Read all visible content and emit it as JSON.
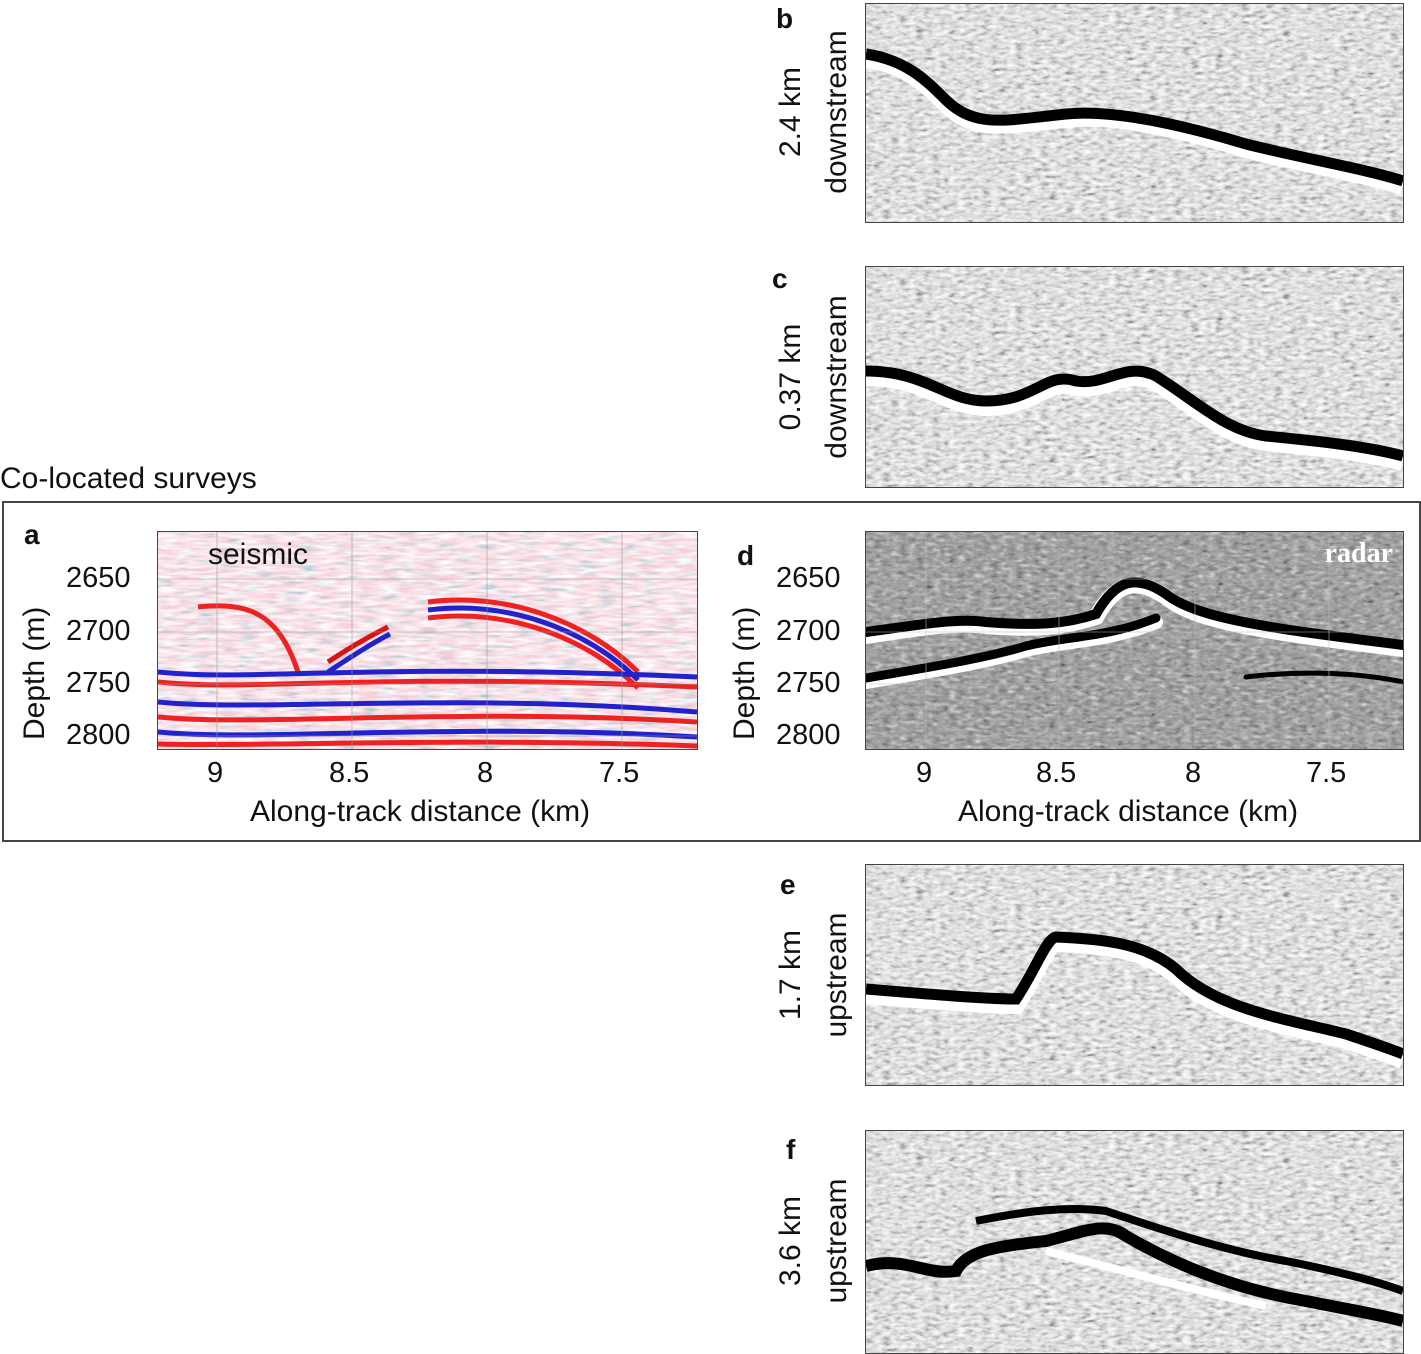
{
  "group_title": "Co-located surveys",
  "chart_data": [
    {
      "panel": "a",
      "type": "heatmap",
      "annotation": "seismic",
      "xlabel": "Along-track distance (km)",
      "ylabel": "Depth (m)",
      "xticks": [
        "9",
        "8.5",
        "8",
        "7.5"
      ],
      "yticks": [
        "2650",
        "2700",
        "2750",
        "2800"
      ],
      "xlim": [
        9.22,
        7.2
      ],
      "ylim": [
        2610,
        2815
      ],
      "colormap": "red-white-blue",
      "grid": true
    },
    {
      "panel": "b",
      "type": "heatmap",
      "label_line1": "2.4 km",
      "label_line2": "downstream",
      "colormap": "gray",
      "grid": true
    },
    {
      "panel": "c",
      "type": "heatmap",
      "label_line1": "0.37 km",
      "label_line2": "downstream",
      "colormap": "gray",
      "grid": true
    },
    {
      "panel": "d",
      "type": "heatmap",
      "annotation": "radar",
      "xlabel": "Along-track distance (km)",
      "ylabel": "Depth (m)",
      "xticks": [
        "9",
        "8.5",
        "8",
        "7.5"
      ],
      "yticks": [
        "2650",
        "2700",
        "2750",
        "2800"
      ],
      "xlim": [
        9.22,
        7.2
      ],
      "ylim": [
        2610,
        2815
      ],
      "colormap": "gray",
      "grid": true
    },
    {
      "panel": "e",
      "type": "heatmap",
      "label_line1": "1.7 km",
      "label_line2": "upstream",
      "colormap": "gray",
      "grid": true
    },
    {
      "panel": "f",
      "type": "heatmap",
      "label_line1": "3.6 km",
      "label_line2": "upstream",
      "colormap": "gray",
      "grid": true
    }
  ]
}
